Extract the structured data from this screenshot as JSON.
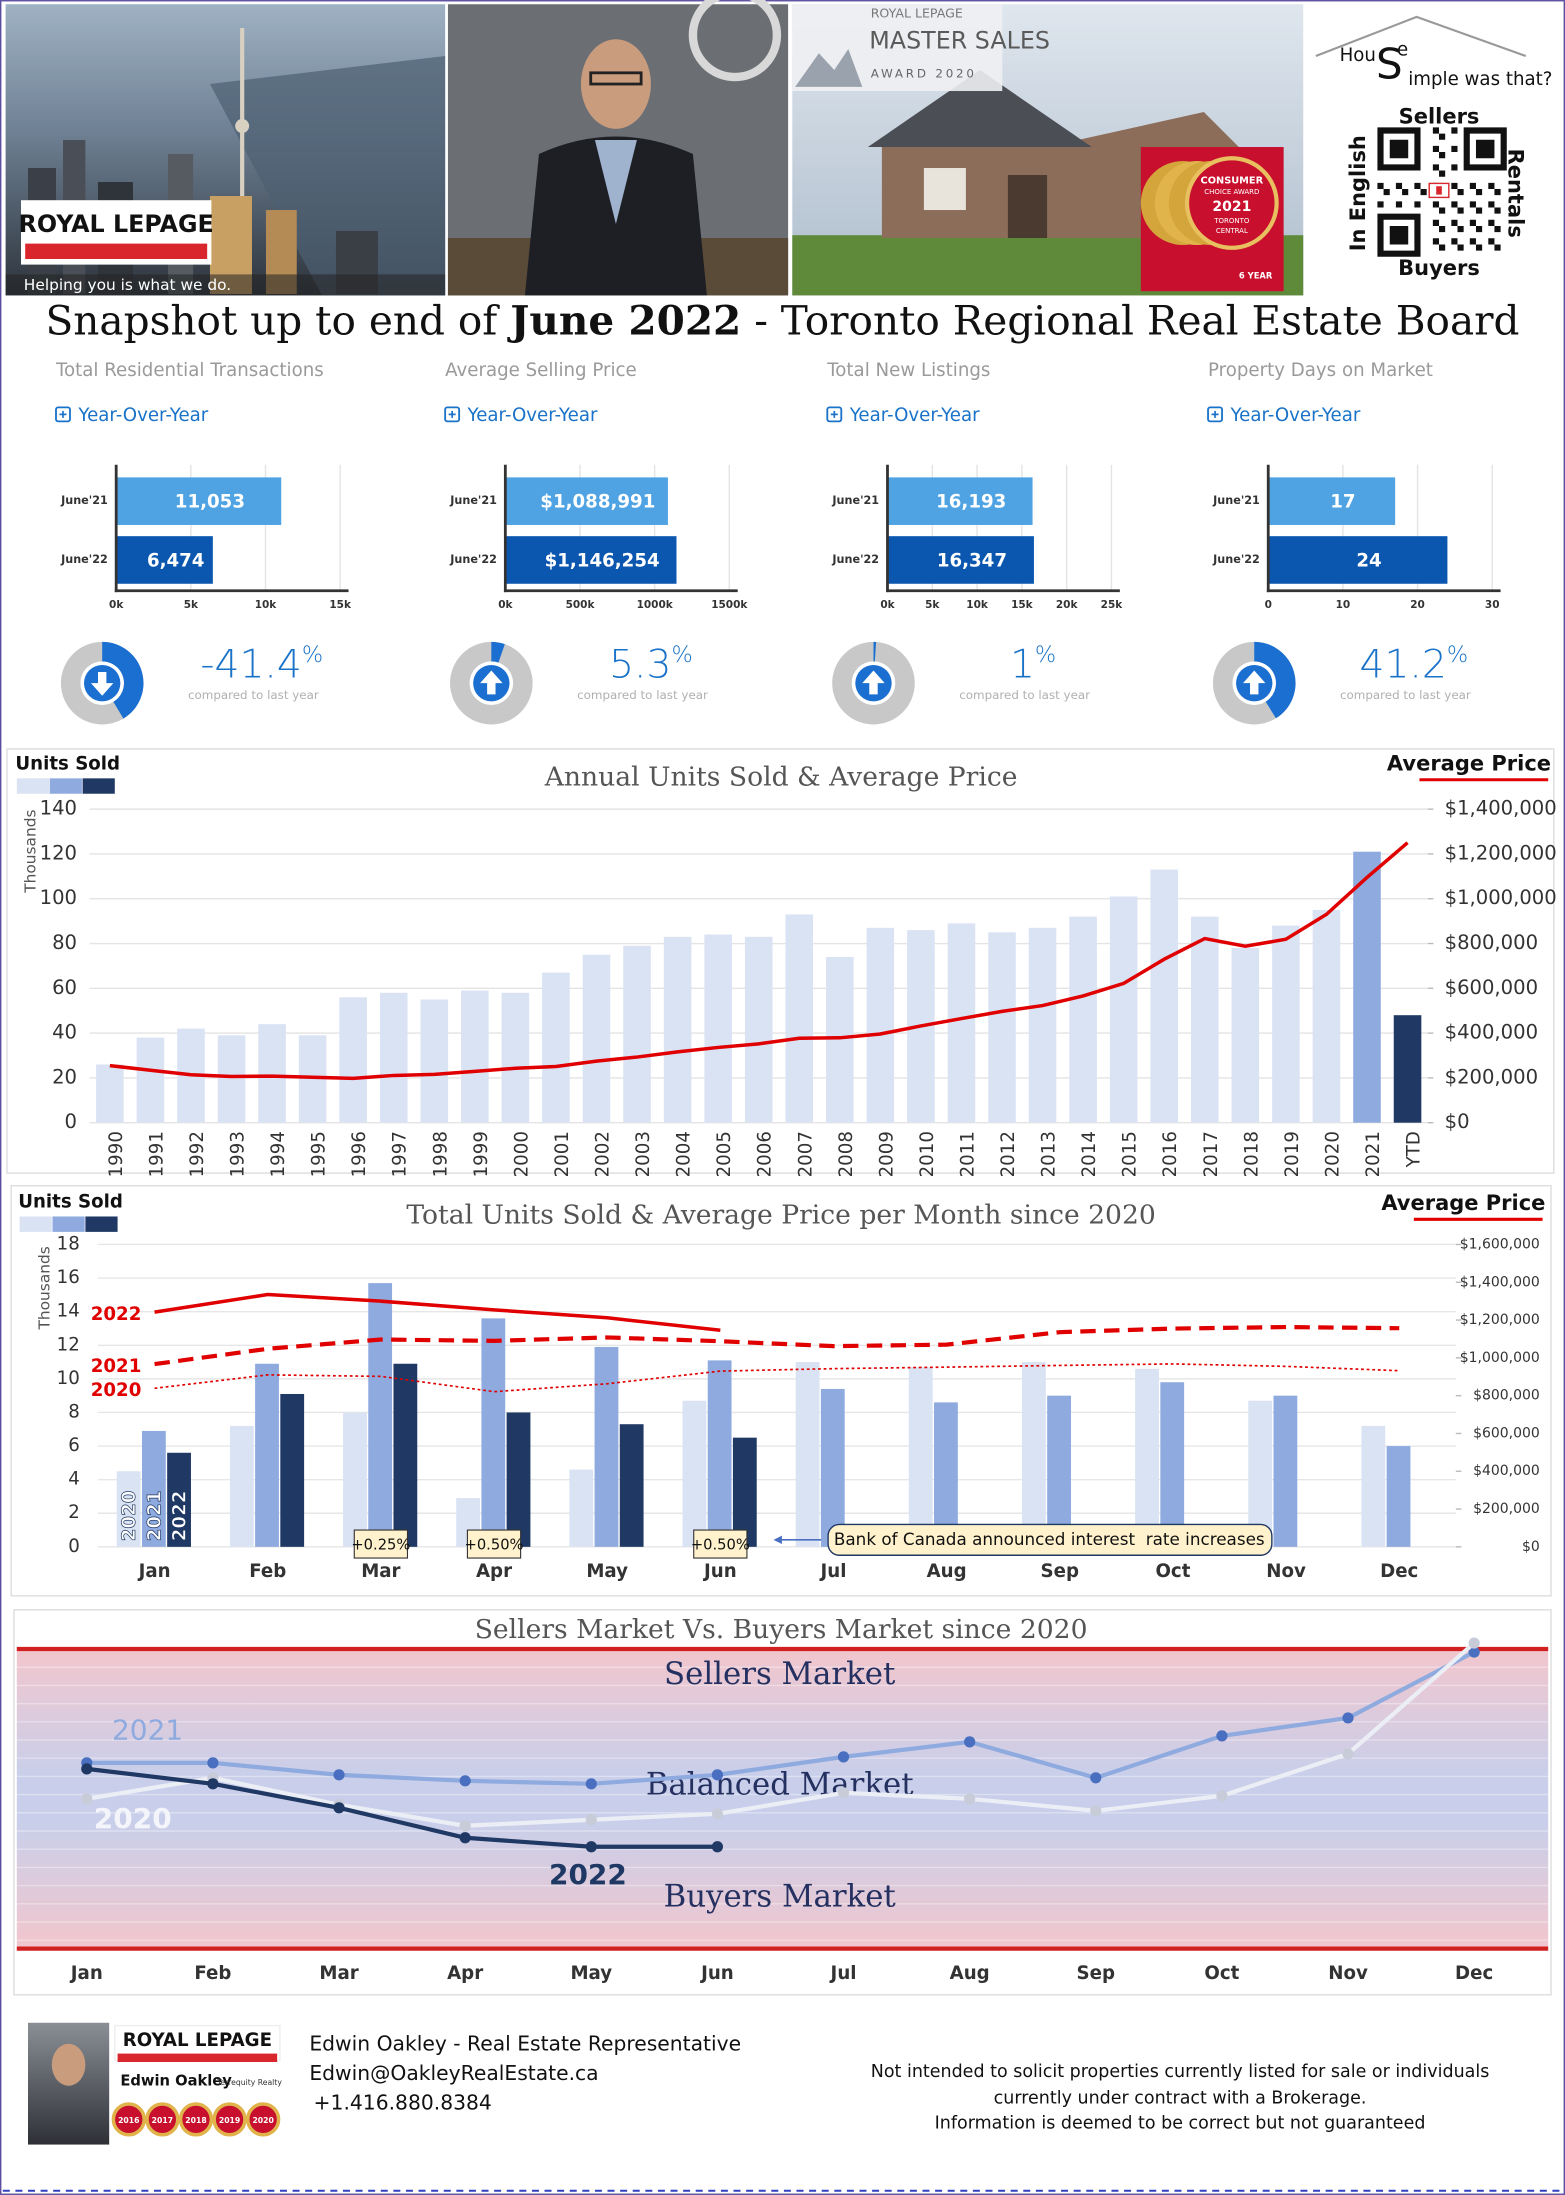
{
  "header": {
    "brand": "ROYAL LEPAGE",
    "tagline": "Helping you is what we do.",
    "award": {
      "brand": "ROYAL LEPAGE",
      "title": "MASTER SALES",
      "subtitle": "AWARD 2020"
    },
    "consumer_award": {
      "lines": [
        "CONSUMER",
        "CHOICE AWARD",
        "2021",
        "TORONTO",
        "CENTRAL"
      ],
      "badge": "6 YEAR"
    },
    "logo": {
      "parts": [
        "Hou",
        "S",
        "e",
        "imple was that?"
      ]
    },
    "qr": {
      "top": "Sellers",
      "bottom": "Buyers",
      "left": "In English",
      "right": "Rentals"
    }
  },
  "title": {
    "parts": [
      "Snapshot up to end of ",
      "June 2022",
      " - Toronto Regional Real Estate Board"
    ]
  },
  "chart_data": [
    {
      "type": "bar",
      "title": "Total Residential Transactions",
      "subtitle": "Year-Over-Year",
      "categories": [
        "June'21",
        "June'22"
      ],
      "values": [
        11053,
        6474
      ],
      "value_labels": [
        "11,053",
        "6,474"
      ],
      "colors": [
        "#4fa3e3",
        "#0b57b0"
      ],
      "xlim": [
        0,
        15000
      ],
      "xticks": [
        {
          "value": 0,
          "label": "0k"
        },
        {
          "value": 5000,
          "label": "5k"
        },
        {
          "value": 10000,
          "label": "10k"
        },
        {
          "value": 15000,
          "label": "15k"
        }
      ],
      "change": -41.4,
      "change_unit": "%",
      "change_note": "compared to last year"
    },
    {
      "type": "bar",
      "title": "Average Selling Price",
      "subtitle": "Year-Over-Year",
      "categories": [
        "June'21",
        "June'22"
      ],
      "values": [
        1088991,
        1146254
      ],
      "value_labels": [
        "$1,088,991",
        "$1,146,254"
      ],
      "colors": [
        "#4fa3e3",
        "#0b57b0"
      ],
      "xlim": [
        0,
        1500000
      ],
      "xticks": [
        {
          "value": 0,
          "label": "0k"
        },
        {
          "value": 500000,
          "label": "500k"
        },
        {
          "value": 1000000,
          "label": "1000k"
        },
        {
          "value": 1500000,
          "label": "1500k"
        }
      ],
      "change": 5.3,
      "change_unit": "%",
      "change_note": "compared to last year"
    },
    {
      "type": "bar",
      "title": "Total New Listings",
      "subtitle": "Year-Over-Year",
      "categories": [
        "June'21",
        "June'22"
      ],
      "values": [
        16193,
        16347
      ],
      "value_labels": [
        "16,193",
        "16,347"
      ],
      "colors": [
        "#4fa3e3",
        "#0b57b0"
      ],
      "xlim": [
        0,
        25000
      ],
      "xticks": [
        {
          "value": 0,
          "label": "0k"
        },
        {
          "value": 5000,
          "label": "5k"
        },
        {
          "value": 10000,
          "label": "10k"
        },
        {
          "value": 15000,
          "label": "15k"
        },
        {
          "value": 20000,
          "label": "20k"
        },
        {
          "value": 25000,
          "label": "25k"
        }
      ],
      "change": 1,
      "change_unit": "%",
      "change_note": "compared to last year"
    },
    {
      "type": "bar",
      "title": "Property Days on Market",
      "subtitle": "Year-Over-Year",
      "categories": [
        "June'21",
        "June'22"
      ],
      "values": [
        17,
        24
      ],
      "colors": [
        "#4fa3e3",
        "#0b57b0"
      ],
      "xlim": [
        0,
        30
      ],
      "xticks": [
        0,
        10,
        20,
        30
      ],
      "change": 41.2,
      "change_unit": "%",
      "change_note": "compared to last year"
    },
    {
      "type": "combo",
      "title": "Annual Units Sold & Average Price",
      "y_label": "Thousands",
      "legend_colors": [
        "#dae3f3",
        "#8eaadf",
        "#1f3864"
      ],
      "categories": [
        "1990",
        "1991",
        "1992",
        "1993",
        "1994",
        "1995",
        "1996",
        "1997",
        "1998",
        "1999",
        "2000",
        "2001",
        "2002",
        "2003",
        "2004",
        "2005",
        "2006",
        "2007",
        "2008",
        "2009",
        "2010",
        "2011",
        "2012",
        "2013",
        "2014",
        "2015",
        "2016",
        "2017",
        "2018",
        "2019",
        "2020",
        "2021",
        "YTD"
      ],
      "series": [
        {
          "name": "Units Sold",
          "type": "bar",
          "color": "#dae3f3",
          "highlight": {
            "2021": "#8eaadf",
            "YTD": "#1f3864"
          },
          "values": [
            26,
            38,
            42,
            39,
            44,
            39,
            56,
            58,
            55,
            59,
            58,
            67,
            75,
            79,
            83,
            84,
            83,
            93,
            74,
            87,
            86,
            89,
            85,
            87,
            92,
            101,
            113,
            92,
            78,
            88,
            95,
            121,
            48
          ]
        },
        {
          "name": "Average Price",
          "type": "line",
          "axis": "y2",
          "color": "#e00000",
          "values": [
            255000,
            234000,
            214000,
            206000,
            208000,
            203000,
            198000,
            211000,
            216000,
            229000,
            243000,
            251000,
            275000,
            293000,
            316000,
            336000,
            352000,
            377000,
            379000,
            396000,
            432000,
            465000,
            497000,
            523000,
            566000,
            622000,
            730000,
            822000,
            788000,
            819000,
            930000,
            1095000,
            1250000
          ]
        }
      ],
      "ylim": [
        0,
        140
      ],
      "yticks": [
        0,
        20,
        40,
        60,
        80,
        100,
        120,
        140
      ],
      "grid": true,
      "y2lim": [
        0,
        1400000
      ],
      "y2ticks": [
        {
          "value": 0,
          "label": "$0"
        },
        {
          "value": 200000,
          "label": "$200,000"
        },
        {
          "value": 400000,
          "label": "$400,000"
        },
        {
          "value": 600000,
          "label": "$600,000"
        },
        {
          "value": 800000,
          "label": "$800,000"
        },
        {
          "value": 1000000,
          "label": "$1,000,000"
        },
        {
          "value": 1200000,
          "label": "$1,200,000"
        },
        {
          "value": 1400000,
          "label": "$1,400,000"
        }
      ]
    },
    {
      "type": "grouped",
      "title": "Total Units Sold & Average Price per Month since 2020",
      "y_label": "Thousands",
      "legend_title": "Units Sold",
      "legend2_title": "Average Price",
      "legend_colors": [
        "#dae3f3",
        "#8eaadf",
        "#1f3864"
      ],
      "categories": [
        "Jan",
        "Feb",
        "Mar",
        "Apr",
        "May",
        "Jun",
        "Jul",
        "Aug",
        "Sep",
        "Oct",
        "Nov",
        "Dec"
      ],
      "series": [
        {
          "name": "2020",
          "type": "bar",
          "color": "#dae3f3",
          "values": [
            4.5,
            7.2,
            8.0,
            2.9,
            4.6,
            8.7,
            11.0,
            10.7,
            11.0,
            10.6,
            8.7,
            7.2
          ]
        },
        {
          "name": "2021",
          "type": "bar",
          "color": "#8eaadf",
          "values": [
            6.9,
            10.9,
            15.7,
            13.6,
            11.9,
            11.1,
            9.4,
            8.6,
            9.0,
            9.8,
            9.0,
            6.0
          ]
        },
        {
          "name": "2022",
          "type": "bar",
          "color": "#1f3864",
          "values": [
            5.6,
            9.1,
            10.9,
            8.0,
            7.3,
            6.5,
            null,
            null,
            null,
            null,
            null,
            null
          ]
        },
        {
          "name": "2022",
          "type": "line",
          "axis": "y2",
          "color": "#e00000",
          "line_style": "solid",
          "values": [
            1242000,
            1335000,
            1300000,
            1254000,
            1212000,
            1146000,
            null,
            null,
            null,
            null,
            null,
            null
          ]
        },
        {
          "name": "2021",
          "type": "line",
          "axis": "y2",
          "color": "#e00000",
          "line_style": "dashed",
          "values": [
            967000,
            1048000,
            1097000,
            1090000,
            1108000,
            1088000,
            1062000,
            1070000,
            1136000,
            1155000,
            1163000,
            1157000
          ]
        },
        {
          "name": "2020",
          "type": "line",
          "axis": "y2",
          "color": "#e00000",
          "line_style": "dotted",
          "values": [
            839000,
            910000,
            902000,
            821000,
            863000,
            930000,
            943000,
            951000,
            960000,
            968000,
            955000,
            932000
          ]
        }
      ],
      "ylim": [
        0,
        18
      ],
      "yticks": [
        0,
        2,
        4,
        6,
        8,
        10,
        12,
        14,
        16,
        18
      ],
      "grid": true,
      "y2lim": [
        0,
        1600000
      ],
      "y2ticks": [
        {
          "value": 0,
          "label": "$0"
        },
        {
          "value": 200000,
          "label": "$200,000"
        },
        {
          "value": 400000,
          "label": "$400,000"
        },
        {
          "value": 600000,
          "label": "$600,000"
        },
        {
          "value": 800000,
          "label": "$800,000"
        },
        {
          "value": 1000000,
          "label": "$1,000,000"
        },
        {
          "value": 1200000,
          "label": "$1,200,000"
        },
        {
          "value": 1400000,
          "label": "$1,400,000"
        },
        {
          "value": 1600000,
          "label": "$1,600,000"
        }
      ],
      "annotations": [
        {
          "category": "Mar",
          "label": "+0.25%"
        },
        {
          "category": "Apr",
          "label": "+0.50%"
        },
        {
          "category": "Jun",
          "label": "+0.50%"
        }
      ],
      "note": {
        "category": "Jun",
        "label": "Bank of Canada announced interest  rate increases"
      }
    },
    {
      "type": "line",
      "title": "Sellers Market Vs. Buyers Market since 2020",
      "zones": [
        "Sellers Market",
        "Balanced Market",
        "Buyers Market"
      ],
      "categories": [
        "Jan",
        "Feb",
        "Mar",
        "Apr",
        "May",
        "Jun",
        "Jul",
        "Aug",
        "Sep",
        "Oct",
        "Nov",
        "Dec"
      ],
      "ylim": [
        0,
        100
      ],
      "series": [
        {
          "name": "2021",
          "color": "#8eaadf",
          "marker_color": "#4a6fc0",
          "values": [
            62,
            62,
            58,
            56,
            55,
            58,
            64,
            69,
            57,
            71,
            77,
            99
          ]
        },
        {
          "name": "2020",
          "color": "#eceef6",
          "marker_color": "#c8ccd8",
          "values": [
            50,
            57,
            48,
            41,
            43,
            45,
            52,
            50,
            46,
            51,
            65,
            102
          ]
        },
        {
          "name": "2022",
          "color": "#1f3864",
          "marker_color": "#1f3864",
          "values": [
            60,
            55,
            47,
            37,
            34,
            34,
            null,
            null,
            null,
            null,
            null,
            null
          ]
        }
      ]
    }
  ],
  "footer": {
    "name": "Edwin Oakley - Real Estate Representative",
    "email": "Edwin@OakleyRealEstate.ca",
    "phone": "+1.416.880.8384",
    "badge_brand": "ROYAL LEPAGE",
    "badge_name": "Edwin Oakley",
    "badge_firm": "Terrequity Realty",
    "badge_years": [
      "2016",
      "2017",
      "2018",
      "2019",
      "2020"
    ],
    "disclaimer": [
      "Not intended to solicit properties currently listed for sale or individuals",
      "currently under contract with a Brokerage.",
      "Information is deemed to be correct but not guaranteed"
    ]
  }
}
